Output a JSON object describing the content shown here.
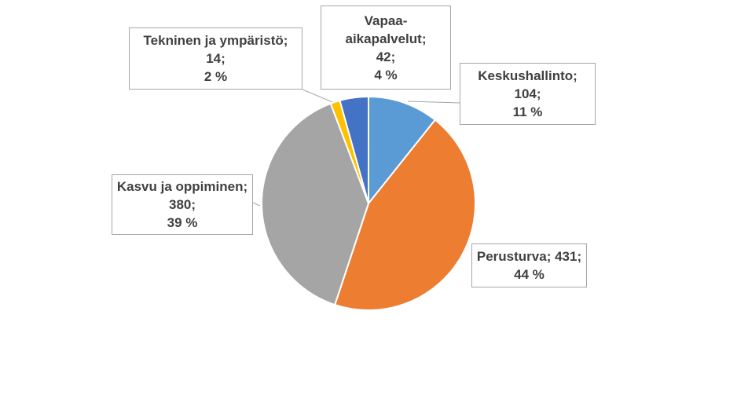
{
  "chart_data": {
    "type": "pie",
    "slices": [
      {
        "label": "Keskushallinto",
        "value": 104,
        "percent": "11 %",
        "color": "#5b9bd5"
      },
      {
        "label": "Perusturva",
        "value": 431,
        "percent": "44 %",
        "color": "#ed7d31"
      },
      {
        "label": "Kasvu ja oppiminen",
        "value": 380,
        "percent": "39 %",
        "color": "#a5a5a5"
      },
      {
        "label": "Tekninen ja ympäristö",
        "value": 14,
        "percent": "2 %",
        "color": "#ffc000"
      },
      {
        "label": "Vapaa-aikapalvelut",
        "value": 42,
        "percent": "4 %",
        "color": "#4472c4"
      }
    ],
    "labels": {
      "keskushallinto": [
        "Keskushallinto;",
        "104;",
        "11 %"
      ],
      "perusturva": [
        "Perusturva; 431;",
        "44 %"
      ],
      "kasvu": [
        "Kasvu ja oppiminen;",
        "380;",
        "39 %"
      ],
      "tekninen": [
        "Tekninen ja ympäristö;",
        "14;",
        "2 %"
      ],
      "vapaa": [
        "Vapaa-",
        "aikapalvelut;",
        "42;",
        "4 %"
      ]
    },
    "start_angle_deg": 0,
    "direction": "clockwise"
  }
}
